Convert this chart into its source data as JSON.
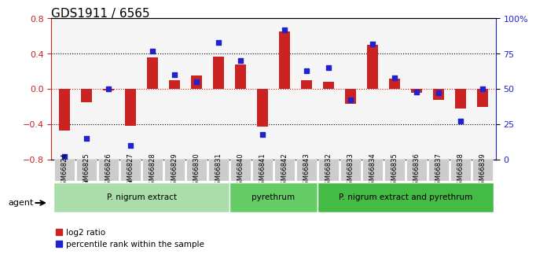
{
  "title": "GDS1911 / 6565",
  "samples": [
    "GSM66824",
    "GSM66825",
    "GSM66826",
    "GSM66827",
    "GSM66828",
    "GSM66829",
    "GSM66830",
    "GSM66831",
    "GSM66840",
    "GSM66841",
    "GSM66842",
    "GSM66843",
    "GSM66832",
    "GSM66833",
    "GSM66834",
    "GSM66835",
    "GSM66836",
    "GSM66837",
    "GSM66838",
    "GSM66839"
  ],
  "log2_ratio": [
    -0.47,
    -0.15,
    -0.02,
    -0.42,
    0.36,
    0.1,
    0.15,
    0.37,
    0.28,
    -0.43,
    0.65,
    0.1,
    0.08,
    -0.17,
    0.5,
    0.12,
    -0.04,
    -0.12,
    -0.22,
    -0.2
  ],
  "percentile": [
    2,
    15,
    50,
    10,
    77,
    60,
    55,
    83,
    70,
    18,
    92,
    63,
    65,
    42,
    82,
    58,
    48,
    47,
    27,
    50
  ],
  "groups": [
    {
      "label": "P. nigrum extract",
      "start": 0,
      "end": 8,
      "color": "#aaddaa"
    },
    {
      "label": "pyrethrum",
      "start": 8,
      "end": 12,
      "color": "#66cc66"
    },
    {
      "label": "P. nigrum extract and pyrethrum",
      "start": 12,
      "end": 20,
      "color": "#44bb44"
    }
  ],
  "ylim_left": [
    -0.8,
    0.8
  ],
  "ylim_right": [
    0,
    100
  ],
  "bar_color": "#cc2222",
  "dot_color": "#2222cc",
  "zero_line_color": "#cc2222",
  "grid_color": "#000000",
  "bg_color": "#ffffff",
  "title_fontsize": 11,
  "tick_fontsize": 7
}
